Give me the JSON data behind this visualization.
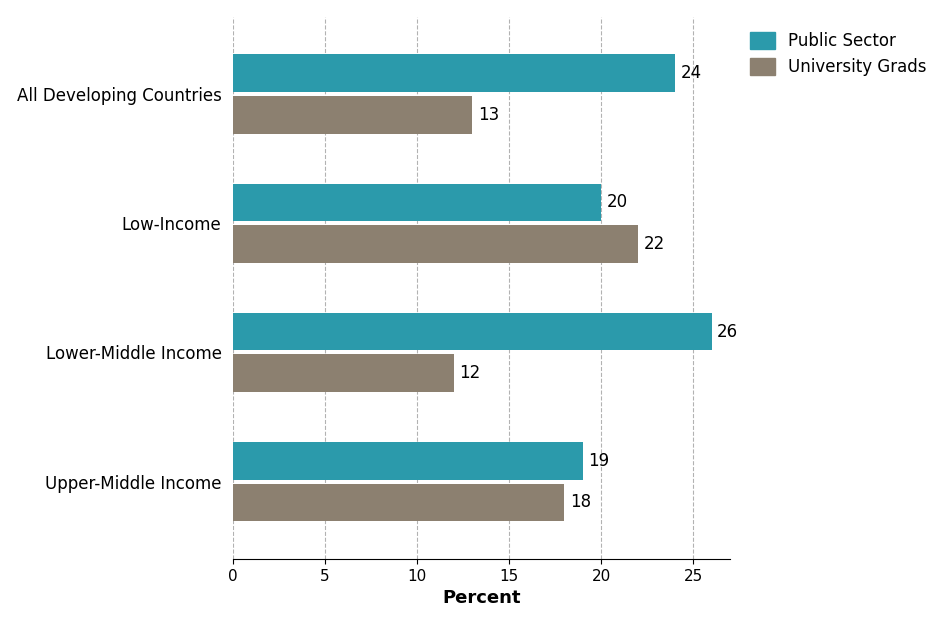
{
  "categories": [
    "All Developing Countries",
    "Low-Income",
    "Lower-Middle Income",
    "Upper-Middle Income"
  ],
  "public_sector": [
    24,
    20,
    26,
    19
  ],
  "university_grads": [
    13,
    22,
    12,
    18
  ],
  "public_sector_color": "#2b9aab",
  "university_grads_color": "#8c8070",
  "bar_height": 0.38,
  "xlabel": "Percent",
  "legend_labels": [
    "Public Sector",
    "University Grads"
  ],
  "xlim": [
    0,
    27
  ],
  "xticks": [
    0,
    5,
    10,
    15,
    20,
    25
  ],
  "value_fontsize": 12,
  "label_fontsize": 12,
  "xlabel_fontsize": 13,
  "legend_fontsize": 12,
  "background_color": "#ffffff"
}
